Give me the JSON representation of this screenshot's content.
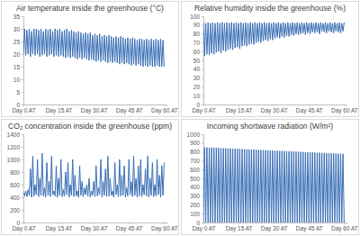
{
  "chart_data": [
    {
      "type": "line",
      "title": "Air temperature inside the greenhouse (°C)",
      "color": "#3a6fb5",
      "x": [
        0,
        0.5,
        1,
        1.5,
        2,
        2.5,
        3,
        3.5,
        4,
        4.5,
        5,
        5.5,
        6,
        6.5,
        7,
        7.5,
        8,
        8.5,
        9,
        9.5,
        10,
        10.5,
        11,
        11.5,
        12,
        12.5,
        13,
        13.5,
        14,
        14.5,
        15,
        15.5,
        16,
        16.5,
        17,
        17.5,
        18,
        18.5,
        19,
        19.5,
        20,
        20.5,
        21,
        21.5,
        22,
        22.5,
        23,
        23.5,
        24,
        24.5,
        25,
        25.5,
        26,
        26.5,
        27,
        27.5,
        28,
        28.5,
        29,
        29.5,
        30,
        30.5,
        31,
        31.5,
        32,
        32.5,
        33,
        33.5,
        34,
        34.5,
        35,
        35.5,
        36,
        36.5,
        37,
        37.5,
        38,
        38.5,
        39,
        39.5,
        40,
        40.5,
        41,
        41.5,
        42,
        42.5,
        43,
        43.5,
        44,
        44.5,
        45,
        45.5,
        46,
        46.5,
        47,
        47.5,
        48,
        48.5,
        49,
        49.5,
        50,
        50.5,
        51,
        51.5,
        52,
        52.5,
        53,
        53.5,
        54,
        54.5,
        55,
        55.5,
        56,
        56.5,
        57,
        57.5,
        58,
        58.5,
        59,
        59.5,
        60
      ],
      "values": [
        20,
        30,
        19.5,
        29.5,
        20,
        30,
        19,
        29,
        20,
        30,
        19.5,
        30,
        20,
        29.5,
        19,
        30,
        19.5,
        29,
        20,
        30,
        19,
        29.5,
        19.5,
        30,
        20,
        29,
        19,
        30,
        19.5,
        29.5,
        19,
        30,
        19.5,
        29,
        19,
        29.5,
        18.5,
        30,
        19,
        29,
        18.5,
        29.5,
        19,
        29,
        18.5,
        28.5,
        18,
        29,
        18.5,
        28.5,
        18,
        28,
        18.5,
        28.5,
        18,
        28,
        17.5,
        28.5,
        18,
        27.5,
        17.5,
        28,
        17,
        27.5,
        17.5,
        28,
        17,
        27,
        17.5,
        27.5,
        17,
        27,
        16.5,
        27.5,
        17,
        27,
        16.5,
        26.5,
        17,
        27,
        16.5,
        26.5,
        16,
        27,
        16.5,
        26.5,
        16,
        26,
        16.5,
        26.5,
        16,
        26,
        15.5,
        26.5,
        16,
        26,
        15.5,
        25.5,
        16,
        26,
        15.5,
        26,
        15,
        25.5,
        15.5,
        26,
        15,
        25.5,
        15.5,
        26,
        15,
        25.5,
        15,
        26,
        15.5,
        25.5,
        15,
        26,
        15,
        25.5,
        15
      ],
      "xlim": [
        0,
        61
      ],
      "xticks": [
        {
          "value": 0,
          "label": "Day 0 AT"
        },
        {
          "value": 15,
          "label": "Day 15 AT"
        },
        {
          "value": 30,
          "label": "Day 30 AT"
        },
        {
          "value": 45,
          "label": "Day 45 AT"
        },
        {
          "value": 60,
          "label": "Day 60 AT"
        }
      ],
      "ylim": [
        0,
        35
      ],
      "yticks": [
        0,
        5,
        10,
        15,
        20,
        25,
        30,
        35
      ]
    },
    {
      "type": "line",
      "title": "Relative humidity inside the greenhouse (%)",
      "color": "#3a6fb5",
      "x": [
        0,
        0.5,
        1,
        1.5,
        2,
        2.5,
        3,
        3.5,
        4,
        4.5,
        5,
        5.5,
        6,
        6.5,
        7,
        7.5,
        8,
        8.5,
        9,
        9.5,
        10,
        10.5,
        11,
        11.5,
        12,
        12.5,
        13,
        13.5,
        14,
        14.5,
        15,
        15.5,
        16,
        16.5,
        17,
        17.5,
        18,
        18.5,
        19,
        19.5,
        20,
        20.5,
        21,
        21.5,
        22,
        22.5,
        23,
        23.5,
        24,
        24.5,
        25,
        25.5,
        26,
        26.5,
        27,
        27.5,
        28,
        28.5,
        29,
        29.5,
        30,
        30.5,
        31,
        31.5,
        32,
        32.5,
        33,
        33.5,
        34,
        34.5,
        35,
        35.5,
        36,
        36.5,
        37,
        37.5,
        38,
        38.5,
        39,
        39.5,
        40,
        40.5,
        41,
        41.5,
        42,
        42.5,
        43,
        43.5,
        44,
        44.5,
        45,
        45.5,
        46,
        46.5,
        47,
        47.5,
        48,
        48.5,
        49,
        49.5,
        50,
        50.5,
        51,
        51.5,
        52,
        52.5,
        53,
        53.5,
        54,
        54.5,
        55,
        55.5,
        56,
        56.5,
        57,
        57.5,
        58,
        58.5,
        59,
        59.5,
        60
      ],
      "values": [
        93,
        55,
        92,
        57,
        93,
        56,
        92,
        58,
        93,
        57,
        92,
        59,
        93,
        60,
        92,
        58,
        93,
        61,
        92,
        60,
        93,
        62,
        92,
        63,
        93,
        62,
        92,
        64,
        93,
        65,
        92,
        63,
        93,
        66,
        92,
        67,
        93,
        66,
        92,
        68,
        93,
        69,
        92,
        68,
        93,
        70,
        92,
        71,
        93,
        70,
        92,
        72,
        93,
        73,
        92,
        72,
        93,
        74,
        92,
        73,
        93,
        75,
        92,
        76,
        93,
        75,
        92,
        77,
        93,
        76,
        92,
        78,
        93,
        77,
        92,
        79,
        93,
        78,
        92,
        80,
        93,
        79,
        92,
        80,
        93,
        81,
        92,
        79,
        93,
        81,
        92,
        80,
        93,
        82,
        92,
        81,
        93,
        82,
        92,
        80,
        93,
        83,
        92,
        82,
        93,
        81,
        92,
        83,
        93,
        82,
        92,
        81,
        93,
        83,
        92,
        82,
        93,
        81,
        92,
        83,
        93
      ],
      "xlim": [
        0,
        61
      ],
      "xticks": [
        {
          "value": 0,
          "label": "Day 0 AT"
        },
        {
          "value": 15,
          "label": "Day 15 AT"
        },
        {
          "value": 30,
          "label": "Day 30 AT"
        },
        {
          "value": 45,
          "label": "Day 45 AT"
        },
        {
          "value": 60,
          "label": "Day 60 AT"
        }
      ],
      "ylim": [
        0,
        100
      ],
      "yticks": [
        0,
        10,
        20,
        30,
        40,
        50,
        60,
        70,
        80,
        90,
        100
      ]
    },
    {
      "type": "line",
      "title": "CO₂ concentration inside the greenhouse (ppm)",
      "color": "#3a6fb5",
      "x": [
        0,
        0.5,
        1,
        1.5,
        2,
        2.5,
        3,
        3.5,
        4,
        4.5,
        5,
        5.5,
        6,
        6.5,
        7,
        7.5,
        8,
        8.5,
        9,
        9.5,
        10,
        10.5,
        11,
        11.5,
        12,
        12.5,
        13,
        13.5,
        14,
        14.5,
        15,
        15.5,
        16,
        16.5,
        17,
        17.5,
        18,
        18.5,
        19,
        19.5,
        20,
        20.5,
        21,
        21.5,
        22,
        22.5,
        23,
        23.5,
        24,
        24.5,
        25,
        25.5,
        26,
        26.5,
        27,
        27.5,
        28,
        28.5,
        29,
        29.5,
        30,
        30.5,
        31,
        31.5,
        32,
        32.5,
        33,
        33.5,
        34,
        34.5,
        35,
        35.5,
        36,
        36.5,
        37,
        37.5,
        38,
        38.5,
        39,
        39.5,
        40,
        40.5,
        41,
        41.5,
        42,
        42.5,
        43,
        43.5,
        44,
        44.5,
        45,
        45.5,
        46,
        46.5,
        47,
        47.5,
        48,
        48.5,
        49,
        49.5,
        50,
        50.5,
        51,
        51.5,
        52,
        52.5,
        53,
        53.5,
        54,
        54.5,
        55,
        55.5,
        56,
        56.5,
        57,
        57.5,
        58,
        58.5,
        59,
        59.5,
        60
      ],
      "values": [
        480,
        420,
        500,
        410,
        520,
        430,
        850,
        400,
        1050,
        420,
        600,
        440,
        1000,
        410,
        700,
        430,
        1100,
        420,
        550,
        400,
        950,
        430,
        650,
        410,
        1050,
        440,
        500,
        420,
        900,
        400,
        700,
        430,
        1000,
        410,
        520,
        420,
        800,
        440,
        950,
        400,
        600,
        430,
        1000,
        410,
        750,
        420,
        500,
        400,
        900,
        430,
        650,
        410,
        550,
        440,
        600,
        420,
        700,
        400,
        500,
        430,
        650,
        410,
        900,
        420,
        550,
        440,
        1000,
        400,
        650,
        430,
        850,
        410,
        1050,
        420,
        700,
        430,
        500,
        400,
        950,
        440,
        600,
        410,
        1000,
        420,
        750,
        430,
        900,
        400,
        550,
        420,
        1000,
        440,
        650,
        410,
        1050,
        430,
        700,
        400,
        900,
        420,
        1000,
        410,
        600,
        440,
        850,
        420,
        1050,
        400,
        700,
        430,
        950,
        410,
        600,
        420,
        1000,
        440,
        750,
        400,
        900,
        430,
        950
      ],
      "xlim": [
        0,
        61
      ],
      "xticks": [
        {
          "value": 0,
          "label": "Day 0 AT"
        },
        {
          "value": 15,
          "label": "Day 15 AT"
        },
        {
          "value": 30,
          "label": "Day 30 AT"
        },
        {
          "value": 45,
          "label": "Day 45 AT"
        },
        {
          "value": 60,
          "label": "Day 60 AT"
        }
      ],
      "ylim": [
        0,
        1400
      ],
      "yticks": [
        0,
        200,
        400,
        600,
        800,
        1000,
        1200,
        1400
      ]
    },
    {
      "type": "line",
      "title": "Incoming shortwave radiation (W/m²)",
      "color": "#3a6fb5",
      "x": [
        0,
        0.5,
        1,
        1.5,
        2,
        2.5,
        3,
        3.5,
        4,
        4.5,
        5,
        5.5,
        6,
        6.5,
        7,
        7.5,
        8,
        8.5,
        9,
        9.5,
        10,
        10.5,
        11,
        11.5,
        12,
        12.5,
        13,
        13.5,
        14,
        14.5,
        15,
        15.5,
        16,
        16.5,
        17,
        17.5,
        18,
        18.5,
        19,
        19.5,
        20,
        20.5,
        21,
        21.5,
        22,
        22.5,
        23,
        23.5,
        24,
        24.5,
        25,
        25.5,
        26,
        26.5,
        27,
        27.5,
        28,
        28.5,
        29,
        29.5,
        30,
        30.5,
        31,
        31.5,
        32,
        32.5,
        33,
        33.5,
        34,
        34.5,
        35,
        35.5,
        36,
        36.5,
        37,
        37.5,
        38,
        38.5,
        39,
        39.5,
        40,
        40.5,
        41,
        41.5,
        42,
        42.5,
        43,
        43.5,
        44,
        44.5,
        45,
        45.5,
        46,
        46.5,
        47,
        47.5,
        48,
        48.5,
        49,
        49.5,
        50,
        50.5,
        51,
        51.5,
        52,
        52.5,
        53,
        53.5,
        54,
        54.5,
        55,
        55.5,
        56,
        56.5,
        57,
        57.5,
        58,
        58.5,
        59,
        59.5,
        60
      ],
      "values": [
        0,
        850,
        0,
        850,
        0,
        848,
        0,
        848,
        0,
        845,
        0,
        845,
        0,
        843,
        0,
        843,
        0,
        840,
        0,
        840,
        0,
        838,
        0,
        838,
        0,
        835,
        0,
        835,
        0,
        833,
        0,
        833,
        0,
        830,
        0,
        830,
        0,
        828,
        0,
        828,
        0,
        825,
        0,
        825,
        0,
        823,
        0,
        823,
        0,
        820,
        0,
        820,
        0,
        818,
        0,
        818,
        0,
        815,
        0,
        815,
        0,
        812,
        0,
        812,
        0,
        810,
        0,
        810,
        0,
        808,
        0,
        808,
        0,
        805,
        0,
        805,
        0,
        803,
        0,
        803,
        0,
        800,
        0,
        800,
        0,
        798,
        0,
        798,
        0,
        795,
        0,
        795,
        0,
        793,
        0,
        793,
        0,
        790,
        0,
        790,
        0,
        788,
        0,
        788,
        0,
        785,
        0,
        785,
        0,
        783,
        0,
        783,
        0,
        780,
        0,
        780,
        0,
        778,
        0,
        778,
        0
      ],
      "xlim": [
        0,
        61
      ],
      "xticks": [
        {
          "value": 0,
          "label": "Day 0 AT"
        },
        {
          "value": 15,
          "label": "Day 15 AT"
        },
        {
          "value": 30,
          "label": "Day 30 AT"
        },
        {
          "value": 45,
          "label": "Day 45 AT"
        },
        {
          "value": 60,
          "label": "Day 60 AT"
        }
      ],
      "ylim": [
        0,
        1000
      ],
      "yticks": [
        0,
        100,
        200,
        300,
        400,
        500,
        600,
        700,
        800,
        900,
        1000
      ]
    }
  ]
}
